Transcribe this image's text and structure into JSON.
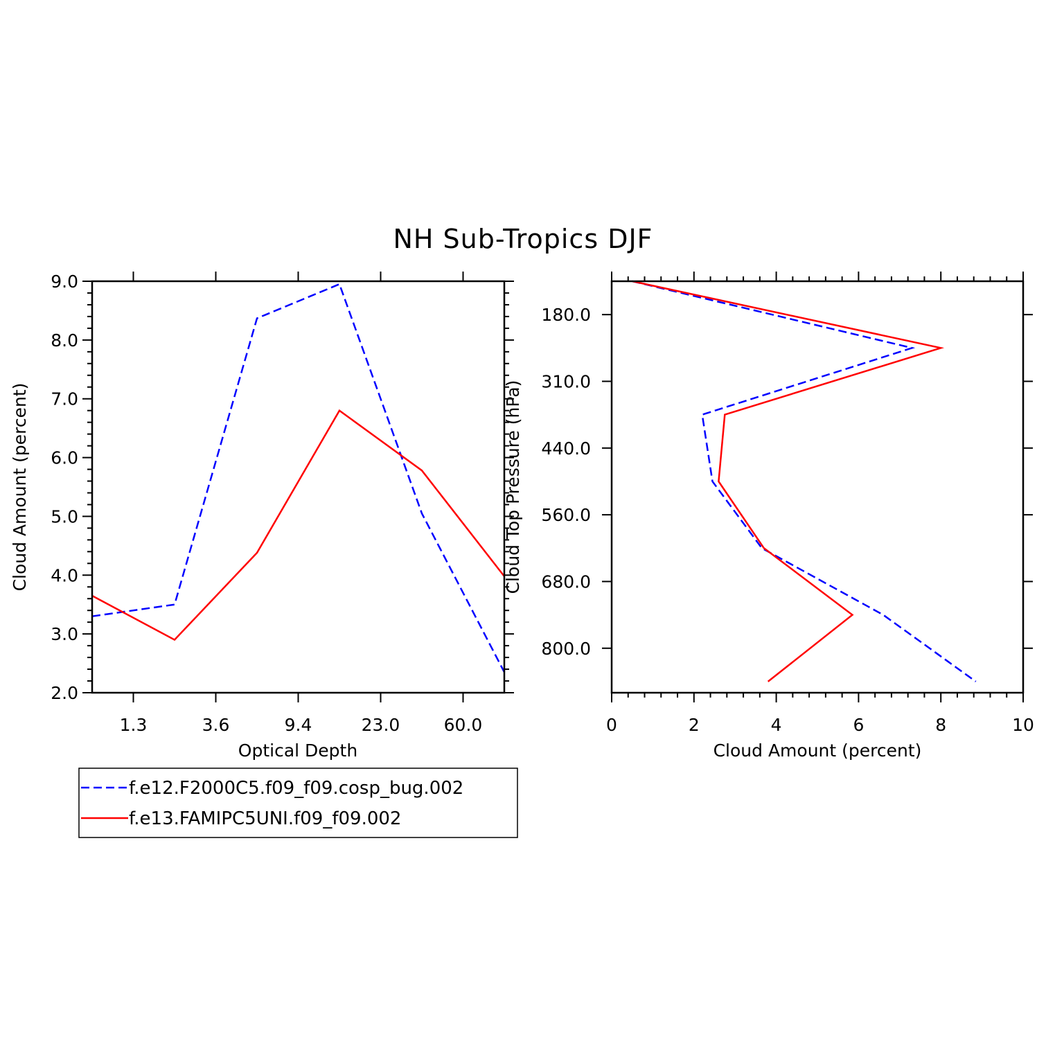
{
  "title": "NH Sub-Tropics DJF",
  "legend": [
    {
      "label": "f.e12.F2000C5.f09_f09.cosp_bug.002",
      "color": "#0000ff",
      "dash": true
    },
    {
      "label": "f.e13.FAMIPC5UNI.f09_f09.002",
      "color": "#ff0000",
      "dash": false
    }
  ],
  "chart_data": [
    {
      "type": "line",
      "title": "NH Sub-Tropics DJF",
      "xlabel": "Optical Depth",
      "ylabel": "Cloud Amount (percent)",
      "x_index": [
        0,
        1,
        2,
        3,
        4,
        5
      ],
      "xtick_labels": [
        "1.3",
        "3.6",
        "9.4",
        "23.0",
        "60.0"
      ],
      "xtick_positions": [
        0.5,
        1.5,
        2.5,
        3.5,
        4.5
      ],
      "xlim": [
        0,
        5
      ],
      "ylim": [
        2.0,
        9.0
      ],
      "ytick_labels": [
        "2.0",
        "3.0",
        "4.0",
        "5.0",
        "6.0",
        "7.0",
        "8.0",
        "9.0"
      ],
      "series": [
        {
          "name": "f.e12.F2000C5.f09_f09.cosp_bug.002",
          "x": [
            0,
            1,
            2,
            3,
            4,
            5
          ],
          "values": [
            3.3,
            3.5,
            8.37,
            8.95,
            5.05,
            2.35
          ]
        },
        {
          "name": "f.e13.FAMIPC5UNI.f09_f09.002",
          "x": [
            0,
            1,
            2,
            3,
            4,
            5
          ],
          "values": [
            3.65,
            2.9,
            4.38,
            6.8,
            5.78,
            3.98
          ]
        }
      ]
    },
    {
      "type": "line",
      "xlabel": "Cloud Amount (percent)",
      "ylabel": "Cloud Top Pressure (hPa)",
      "xlim": [
        0,
        10
      ],
      "xtick_labels": [
        "0",
        "2",
        "4",
        "6",
        "8",
        "10"
      ],
      "ylim": [
        120,
        860
      ],
      "y_inverted": true,
      "ytick_labels": [
        "180.0",
        "310.0",
        "440.0",
        "560.0",
        "680.0",
        "800.0"
      ],
      "ytick_values": [
        180,
        300,
        420,
        540,
        660,
        780
      ],
      "pressure_levels": [
        120,
        240,
        360,
        480,
        600,
        720,
        840
      ],
      "series": [
        {
          "name": "f.e12.F2000C5.f09_f09.cosp_bug.002",
          "x": [
            0.5,
            7.3,
            2.2,
            2.45,
            3.65,
            6.6,
            8.85
          ],
          "y": [
            120,
            240,
            360,
            480,
            600,
            720,
            840
          ]
        },
        {
          "name": "f.e13.FAMIPC5UNI.f09_f09.002",
          "x": [
            0.5,
            8.0,
            2.75,
            2.6,
            3.7,
            5.85,
            3.8
          ],
          "y": [
            120,
            240,
            360,
            480,
            600,
            720,
            840
          ]
        }
      ]
    }
  ]
}
